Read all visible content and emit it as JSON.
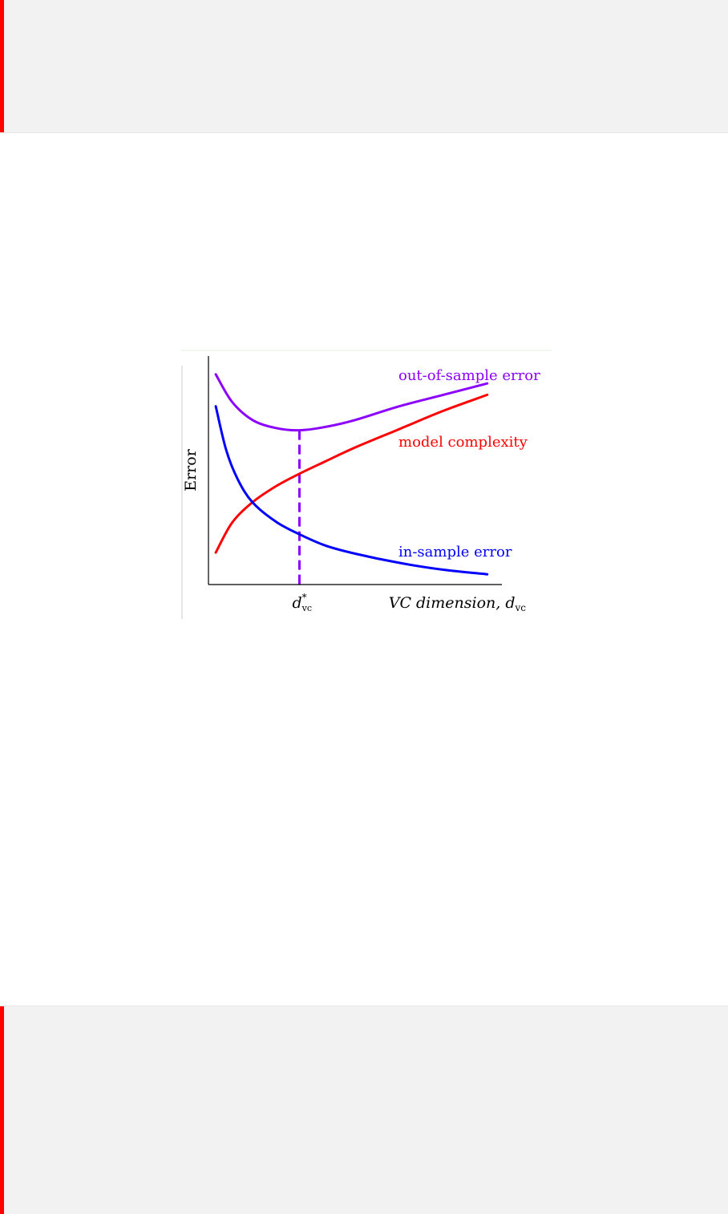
{
  "colors": {
    "band_background": "#f2f2f2",
    "band_accent": "#ff0000",
    "out_of_sample": "#8b00ff",
    "model_complexity": "#ff0000",
    "in_sample": "#0000ff",
    "axis": "#000000"
  },
  "chart_data": {
    "type": "line",
    "title": "",
    "ylabel": "Error",
    "xlabel": "VC dimension, d",
    "xlabel_subscript": "vc",
    "xlim": [
      0,
      10
    ],
    "ylim": [
      0,
      10
    ],
    "grid": false,
    "vline": {
      "x": 3.1,
      "label": "d",
      "label_superscript": "*",
      "label_subscript": "vc"
    },
    "series": [
      {
        "name": "out-of-sample error",
        "color": "#8b00ff",
        "points": [
          [
            0.25,
            9.2
          ],
          [
            0.8,
            8.0
          ],
          [
            1.5,
            7.2
          ],
          [
            2.3,
            6.85
          ],
          [
            3.1,
            6.75
          ],
          [
            4.0,
            6.9
          ],
          [
            5.0,
            7.2
          ],
          [
            6.5,
            7.8
          ],
          [
            8.0,
            8.3
          ],
          [
            9.5,
            8.8
          ]
        ]
      },
      {
        "name": "model complexity",
        "color": "#ff0000",
        "points": [
          [
            0.25,
            1.4
          ],
          [
            0.8,
            2.7
          ],
          [
            1.5,
            3.6
          ],
          [
            2.3,
            4.3
          ],
          [
            3.1,
            4.85
          ],
          [
            4.0,
            5.4
          ],
          [
            5.0,
            6.0
          ],
          [
            6.5,
            6.8
          ],
          [
            8.0,
            7.6
          ],
          [
            9.5,
            8.3
          ]
        ]
      },
      {
        "name": "in-sample error",
        "color": "#0000ff",
        "points": [
          [
            0.25,
            7.8
          ],
          [
            0.6,
            5.9
          ],
          [
            1.0,
            4.6
          ],
          [
            1.5,
            3.6
          ],
          [
            2.3,
            2.75
          ],
          [
            3.1,
            2.2
          ],
          [
            4.0,
            1.7
          ],
          [
            5.0,
            1.35
          ],
          [
            6.5,
            0.95
          ],
          [
            8.0,
            0.65
          ],
          [
            9.5,
            0.45
          ]
        ]
      }
    ]
  }
}
